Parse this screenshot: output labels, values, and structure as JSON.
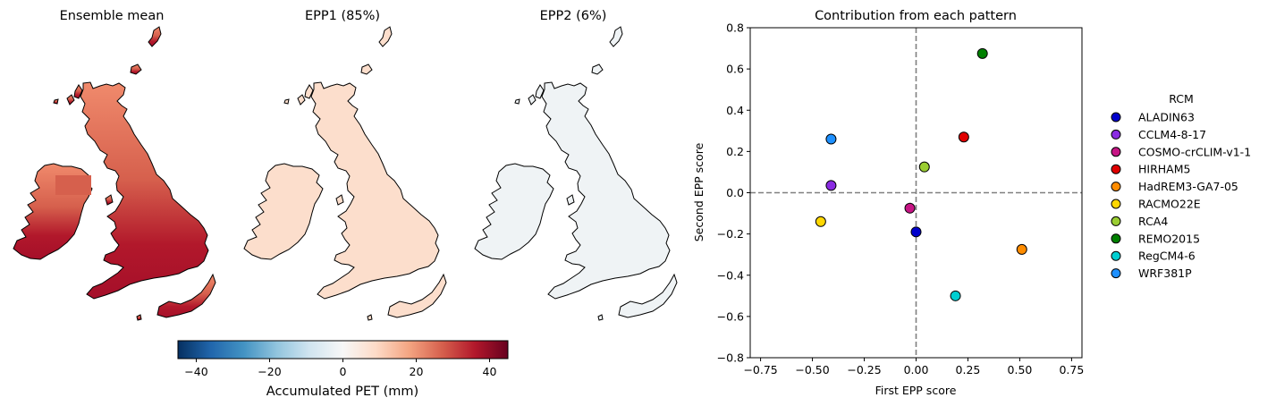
{
  "maps": {
    "titles": [
      "Ensemble mean",
      "EPP1 (85%)",
      "EPP2 (6%)"
    ],
    "colorbar": {
      "label": "Accumulated PET (mm)",
      "ticks": [
        "−40",
        "−20",
        "0",
        "20",
        "40"
      ],
      "range": [
        -45,
        45
      ],
      "colormap": "RdBu_r"
    },
    "panel_fill_levels_mm": [
      30,
      8,
      -2
    ],
    "colors": {
      "outline": "#000000"
    }
  },
  "chart_data": {
    "type": "scatter",
    "title": "Contribution from each pattern",
    "xlabel": "First EPP score",
    "ylabel": "Second EPP score",
    "xlim": [
      -0.8,
      0.8
    ],
    "ylim": [
      -0.8,
      0.8
    ],
    "xticks": [
      "−0.75",
      "−0.50",
      "−0.25",
      "0.00",
      "0.25",
      "0.50",
      "0.75"
    ],
    "yticks": [
      "−0.8",
      "−0.6",
      "−0.4",
      "−0.2",
      "0.0",
      "0.2",
      "0.4",
      "0.6",
      "0.8"
    ],
    "reference_lines": {
      "x": 0,
      "y": 0,
      "style": "dashed",
      "color": "#808080"
    },
    "legend": {
      "title": "RCM",
      "placement": "outside-right"
    },
    "points": [
      {
        "name": "ALADIN63",
        "x": 0.0,
        "y": -0.19,
        "color": "#0000cc"
      },
      {
        "name": "CCLM4-8-17",
        "x": -0.41,
        "y": 0.035,
        "color": "#8a2be2"
      },
      {
        "name": "COSMO-crCLIM-v1-1",
        "x": -0.03,
        "y": -0.075,
        "color": "#c71585"
      },
      {
        "name": "HIRHAM5",
        "x": 0.23,
        "y": 0.27,
        "color": "#e00000"
      },
      {
        "name": "HadREM3-GA7-05",
        "x": 0.51,
        "y": -0.275,
        "color": "#ff8c00"
      },
      {
        "name": "RACMO22E",
        "x": -0.46,
        "y": -0.14,
        "color": "#ffd700"
      },
      {
        "name": "RCA4",
        "x": 0.04,
        "y": 0.125,
        "color": "#9acd32"
      },
      {
        "name": "REMO2015",
        "x": 0.32,
        "y": 0.675,
        "color": "#008000"
      },
      {
        "name": "RegCM4-6",
        "x": 0.19,
        "y": -0.5,
        "color": "#00ced1"
      },
      {
        "name": "WRF381P",
        "x": -0.41,
        "y": 0.26,
        "color": "#1e90ff"
      }
    ]
  }
}
